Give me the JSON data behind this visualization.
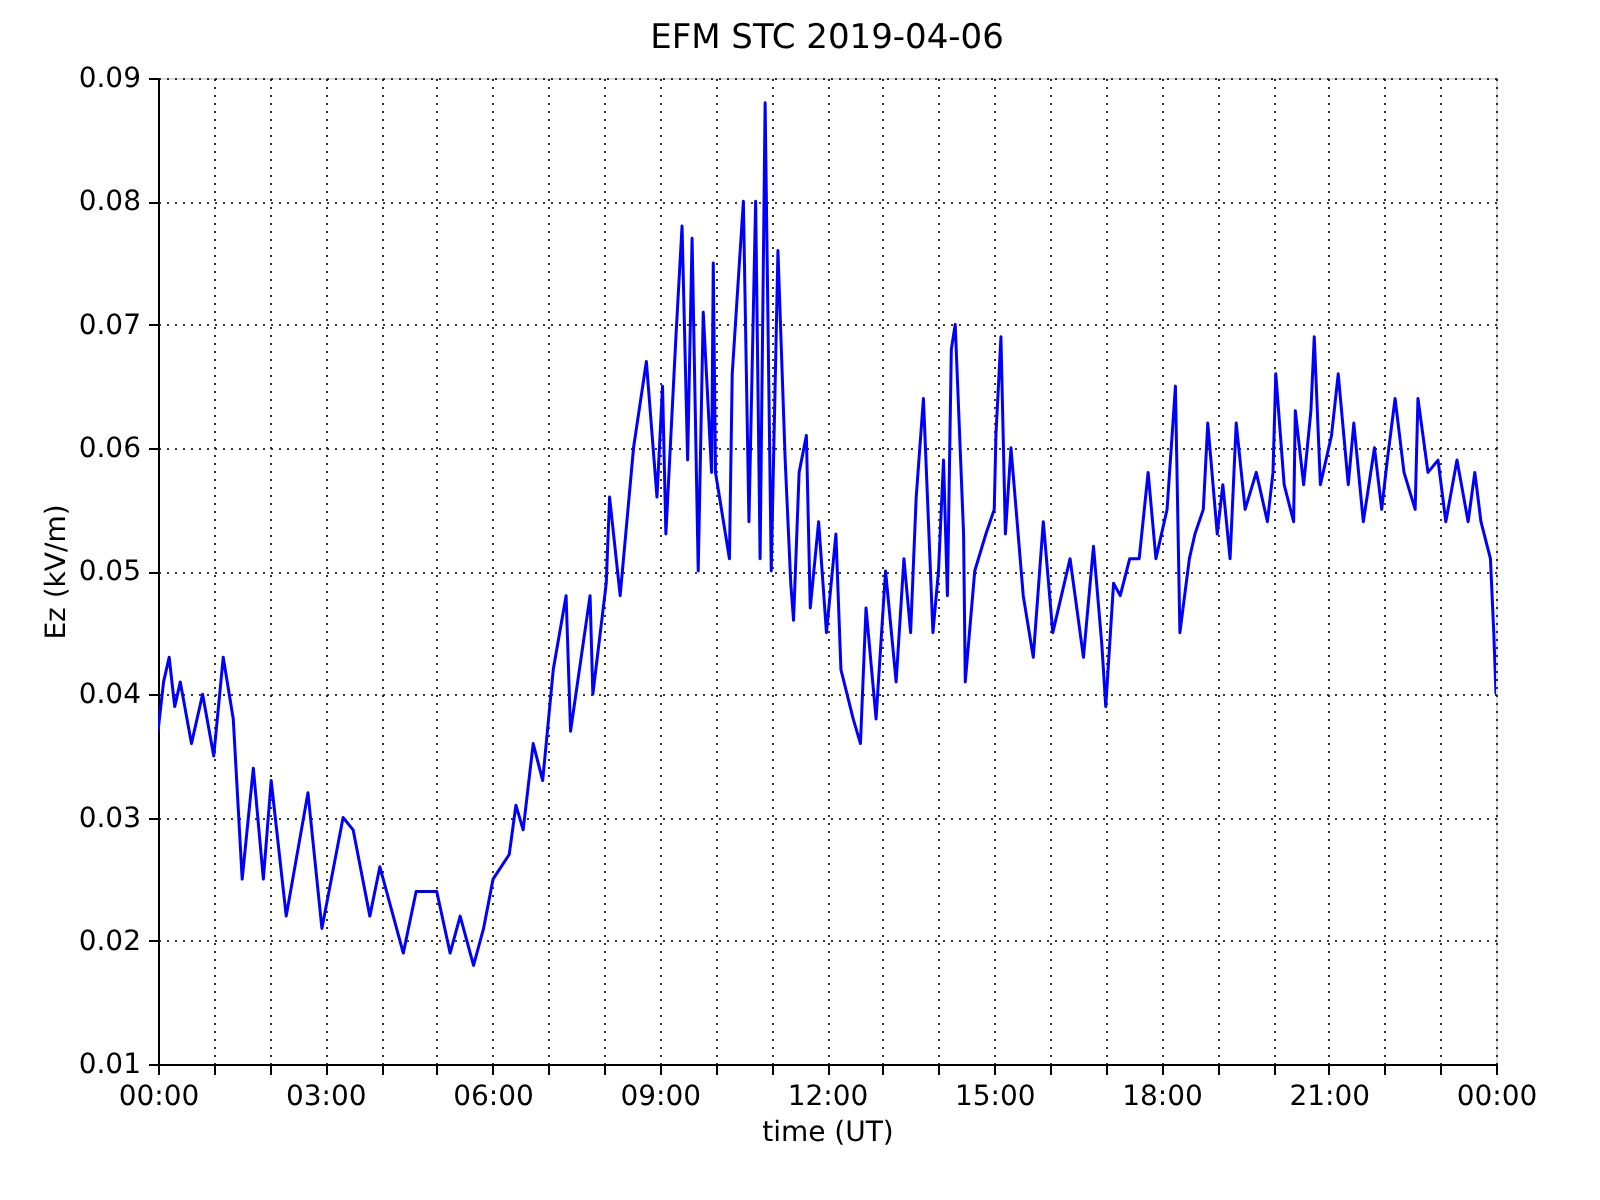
{
  "chart_data": {
    "type": "line",
    "title": "EFM STC    2019-04-06",
    "xlabel": "time (UT)",
    "ylabel": "Ez (kV/m)",
    "xlim": [
      0,
      24
    ],
    "ylim": [
      0.01,
      0.09
    ],
    "xticks": [
      {
        "value": 0,
        "label": "00:00"
      },
      {
        "value": 1,
        "label": null
      },
      {
        "value": 2,
        "label": null
      },
      {
        "value": 3,
        "label": "03:00"
      },
      {
        "value": 4,
        "label": null
      },
      {
        "value": 5,
        "label": null
      },
      {
        "value": 6,
        "label": "06:00"
      },
      {
        "value": 7,
        "label": null
      },
      {
        "value": 8,
        "label": null
      },
      {
        "value": 9,
        "label": "09:00"
      },
      {
        "value": 10,
        "label": null
      },
      {
        "value": 11,
        "label": null
      },
      {
        "value": 12,
        "label": "12:00"
      },
      {
        "value": 13,
        "label": null
      },
      {
        "value": 14,
        "label": null
      },
      {
        "value": 15,
        "label": "15:00"
      },
      {
        "value": 16,
        "label": null
      },
      {
        "value": 17,
        "label": null
      },
      {
        "value": 18,
        "label": "18:00"
      },
      {
        "value": 19,
        "label": null
      },
      {
        "value": 20,
        "label": null
      },
      {
        "value": 21,
        "label": "21:00"
      },
      {
        "value": 22,
        "label": null
      },
      {
        "value": 23,
        "label": null
      },
      {
        "value": 24,
        "label": "00:00"
      }
    ],
    "yticks": [
      0.01,
      0.02,
      0.03,
      0.04,
      0.05,
      0.06,
      0.07,
      0.08,
      0.09
    ],
    "grid": true,
    "line_style": "solid",
    "marker": "none",
    "series": [
      {
        "color": "#0000ff",
        "x": [
          0,
          0.1,
          0.2,
          0.3,
          0.4,
          0.6,
          0.8,
          1.0,
          1.17,
          1.35,
          1.51,
          1.71,
          1.89,
          2.03,
          2.3,
          2.69,
          2.94,
          3.32,
          3.5,
          3.8,
          3.98,
          4.4,
          4.63,
          5.0,
          5.24,
          5.42,
          5.66,
          5.84,
          6.01,
          6.3,
          6.42,
          6.55,
          6.73,
          6.9,
          7.09,
          7.32,
          7.4,
          7.75,
          7.8,
          8.04,
          8.1,
          8.29,
          8.53,
          8.76,
          8.95,
          9.05,
          9.11,
          9.29,
          9.4,
          9.5,
          9.58,
          9.69,
          9.78,
          9.93,
          9.96,
          10.0,
          10.25,
          10.3,
          10.5,
          10.6,
          10.72,
          10.8,
          10.89,
          11.0,
          11.12,
          11.25,
          11.35,
          11.4,
          11.5,
          11.63,
          11.7,
          11.85,
          11.99,
          12.16,
          12.25,
          12.47,
          12.6,
          12.7,
          12.88,
          13.05,
          13.24,
          13.38,
          13.5,
          13.6,
          13.73,
          13.9,
          14.0,
          14.09,
          14.16,
          14.23,
          14.3,
          14.45,
          14.48,
          14.65,
          14.85,
          15.0,
          15.03,
          15.12,
          15.2,
          15.3,
          15.52,
          15.7,
          15.88,
          16.05,
          16.36,
          16.6,
          16.78,
          16.93,
          17.0,
          17.14,
          17.26,
          17.43,
          17.6,
          17.76,
          17.9,
          18.1,
          18.25,
          18.33,
          18.5,
          18.6,
          18.75,
          18.83,
          19.0,
          19.1,
          19.23,
          19.34,
          19.5,
          19.7,
          19.9,
          20.0,
          20.05,
          20.2,
          20.37,
          20.4,
          20.55,
          20.68,
          20.74,
          20.85,
          21.05,
          21.17,
          21.35,
          21.45,
          21.62,
          21.82,
          21.95,
          22.05,
          22.19,
          22.35,
          22.55,
          22.6,
          22.78,
          22.96,
          23.1,
          23.3,
          23.5,
          23.62,
          23.73,
          23.9,
          23.96,
          24.0
        ],
        "values": [
          0.037,
          0.041,
          0.043,
          0.039,
          0.041,
          0.036,
          0.04,
          0.035,
          0.043,
          0.038,
          0.025,
          0.034,
          0.025,
          0.033,
          0.022,
          0.032,
          0.021,
          0.03,
          0.029,
          0.022,
          0.026,
          0.019,
          0.024,
          0.024,
          0.019,
          0.022,
          0.018,
          0.021,
          0.025,
          0.027,
          0.031,
          0.029,
          0.036,
          0.033,
          0.042,
          0.048,
          0.037,
          0.048,
          0.04,
          0.049,
          0.056,
          0.048,
          0.06,
          0.067,
          0.056,
          0.065,
          0.053,
          0.069,
          0.078,
          0.059,
          0.077,
          0.05,
          0.071,
          0.058,
          0.075,
          0.058,
          0.051,
          0.066,
          0.08,
          0.054,
          0.08,
          0.051,
          0.088,
          0.05,
          0.076,
          0.059,
          0.049,
          0.046,
          0.058,
          0.061,
          0.047,
          0.054,
          0.045,
          0.053,
          0.042,
          0.038,
          0.036,
          0.047,
          0.038,
          0.05,
          0.041,
          0.051,
          0.045,
          0.056,
          0.064,
          0.045,
          0.05,
          0.059,
          0.048,
          0.068,
          0.07,
          0.053,
          0.041,
          0.05,
          0.053,
          0.055,
          0.061,
          0.069,
          0.053,
          0.06,
          0.048,
          0.043,
          0.054,
          0.045,
          0.051,
          0.043,
          0.052,
          0.044,
          0.039,
          0.049,
          0.048,
          0.051,
          0.051,
          0.058,
          0.051,
          0.055,
          0.065,
          0.045,
          0.051,
          0.053,
          0.055,
          0.062,
          0.053,
          0.057,
          0.051,
          0.062,
          0.055,
          0.058,
          0.054,
          0.058,
          0.066,
          0.057,
          0.054,
          0.063,
          0.057,
          0.063,
          0.069,
          0.057,
          0.061,
          0.066,
          0.057,
          0.062,
          0.054,
          0.06,
          0.055,
          0.059,
          0.064,
          0.058,
          0.055,
          0.064,
          0.058,
          0.059,
          0.054,
          0.059,
          0.054,
          0.058,
          0.054,
          0.051,
          0.045,
          0.04
        ]
      }
    ]
  }
}
